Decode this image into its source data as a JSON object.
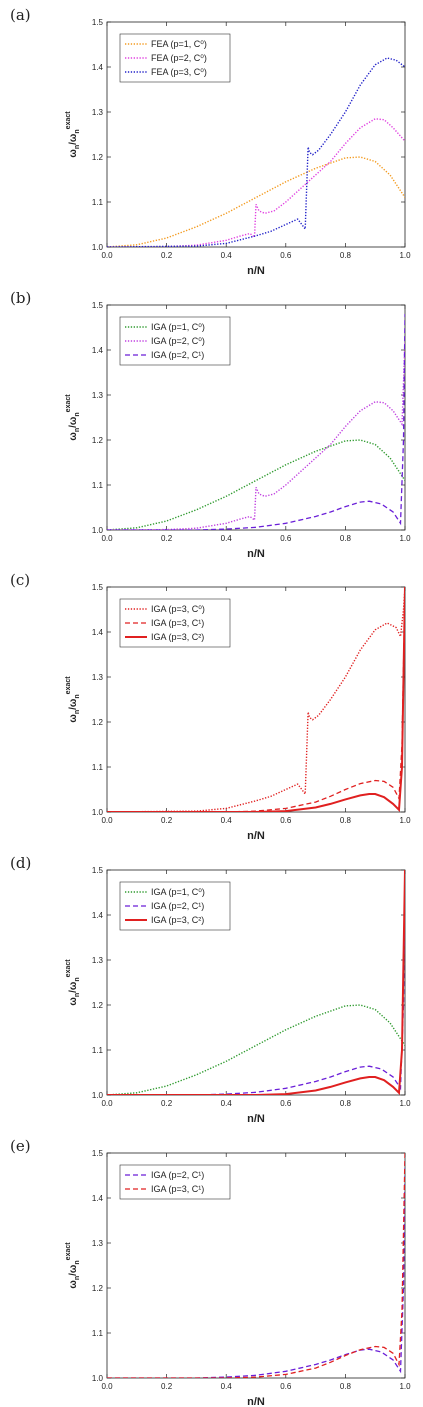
{
  "chart_data": [
    {
      "panel": "(a)",
      "type": "line",
      "xlabel": "n/N",
      "ylabel": {
        "base": "ω",
        "sub": "n",
        "sup": "exact"
      },
      "xlim": [
        0.0,
        1.0
      ],
      "ylim": [
        1.0,
        1.5
      ],
      "xticks": [
        "0.0",
        "0.2",
        "0.4",
        "0.6",
        "0.8",
        "1.0"
      ],
      "yticks": [
        "1.0",
        "1.1",
        "1.2",
        "1.3",
        "1.4",
        "1.5"
      ],
      "legend_position": "top-left",
      "series": [
        {
          "name": "FEA (p=1, C⁰)",
          "color": "#F39A1E",
          "dash": "dotted",
          "x": [
            0,
            0.1,
            0.2,
            0.3,
            0.4,
            0.5,
            0.6,
            0.7,
            0.8,
            0.85,
            0.9,
            0.95,
            1.0
          ],
          "y": [
            1.0,
            1.005,
            1.02,
            1.045,
            1.075,
            1.11,
            1.145,
            1.175,
            1.198,
            1.2,
            1.19,
            1.16,
            1.11
          ]
        },
        {
          "name": "FEA (p=2, C⁰)",
          "color": "#E040E0",
          "dash": "dotted",
          "x": [
            0,
            0.2,
            0.3,
            0.4,
            0.45,
            0.48,
            0.495,
            0.5,
            0.51,
            0.53,
            0.56,
            0.6,
            0.65,
            0.7,
            0.75,
            0.8,
            0.85,
            0.9,
            0.93,
            0.96,
            1.0
          ],
          "y": [
            1.0,
            1.001,
            1.004,
            1.015,
            1.025,
            1.03,
            1.022,
            1.095,
            1.08,
            1.075,
            1.08,
            1.1,
            1.13,
            1.16,
            1.19,
            1.23,
            1.265,
            1.285,
            1.283,
            1.265,
            1.235
          ]
        },
        {
          "name": "FEA (p=3, C⁰)",
          "color": "#2020C8",
          "dash": "dotted",
          "x": [
            0,
            0.3,
            0.4,
            0.5,
            0.55,
            0.6,
            0.64,
            0.665,
            0.675,
            0.68,
            0.69,
            0.71,
            0.75,
            0.8,
            0.85,
            0.9,
            0.94,
            0.97,
            1.0
          ],
          "y": [
            1.0,
            1.002,
            1.008,
            1.025,
            1.035,
            1.05,
            1.062,
            1.04,
            1.222,
            1.21,
            1.205,
            1.215,
            1.25,
            1.3,
            1.36,
            1.405,
            1.42,
            1.415,
            1.4
          ]
        }
      ]
    },
    {
      "panel": "(b)",
      "type": "line",
      "xlabel": "n/N",
      "ylabel": {
        "base": "ω",
        "sub": "n",
        "sup": "exact"
      },
      "xlim": [
        0.0,
        1.0
      ],
      "ylim": [
        1.0,
        1.5
      ],
      "xticks": [
        "0.0",
        "0.2",
        "0.4",
        "0.6",
        "0.8",
        "1.0"
      ],
      "yticks": [
        "1.0",
        "1.1",
        "1.2",
        "1.3",
        "1.4",
        "1.5"
      ],
      "legend_position": "top-left",
      "series": [
        {
          "name": "IGA (p=1, C⁰)",
          "color": "#2E9A2E",
          "dash": "dotted",
          "x": [
            0,
            0.1,
            0.2,
            0.3,
            0.4,
            0.5,
            0.6,
            0.7,
            0.8,
            0.85,
            0.9,
            0.95,
            1.0
          ],
          "y": [
            1.0,
            1.005,
            1.02,
            1.045,
            1.075,
            1.11,
            1.145,
            1.175,
            1.198,
            1.2,
            1.19,
            1.16,
            1.11
          ]
        },
        {
          "name": "IGA (p=2, C⁰)",
          "color": "#C040E0",
          "dash": "dotted",
          "x": [
            0,
            0.2,
            0.3,
            0.4,
            0.45,
            0.48,
            0.495,
            0.5,
            0.51,
            0.53,
            0.56,
            0.6,
            0.65,
            0.7,
            0.75,
            0.8,
            0.85,
            0.9,
            0.93,
            0.96,
            0.99,
            1.0
          ],
          "y": [
            1.0,
            1.001,
            1.004,
            1.015,
            1.025,
            1.03,
            1.022,
            1.095,
            1.08,
            1.075,
            1.08,
            1.1,
            1.13,
            1.16,
            1.19,
            1.23,
            1.265,
            1.285,
            1.283,
            1.265,
            1.235,
            1.42
          ]
        },
        {
          "name": "IGA (p=2, C¹)",
          "color": "#6A1FD8",
          "dash": "dashed",
          "x": [
            0,
            0.3,
            0.4,
            0.5,
            0.6,
            0.7,
            0.75,
            0.8,
            0.85,
            0.88,
            0.92,
            0.96,
            0.985,
            0.995,
            1.0
          ],
          "y": [
            1.0,
            1.0,
            1.002,
            1.006,
            1.015,
            1.03,
            1.04,
            1.052,
            1.062,
            1.064,
            1.058,
            1.04,
            1.015,
            1.2,
            1.48
          ]
        }
      ]
    },
    {
      "panel": "(c)",
      "type": "line",
      "xlabel": "n/N",
      "ylabel": {
        "base": "ω",
        "sub": "n",
        "sup": "exact"
      },
      "xlim": [
        0.0,
        1.0
      ],
      "ylim": [
        1.0,
        1.5
      ],
      "xticks": [
        "0.0",
        "0.2",
        "0.4",
        "0.6",
        "0.8",
        "1.0"
      ],
      "yticks": [
        "1.0",
        "1.1",
        "1.2",
        "1.3",
        "1.4",
        "1.5"
      ],
      "legend_position": "top-left",
      "series": [
        {
          "name": "IGA (p=3, C⁰)",
          "color": "#E02020",
          "dash": "dotted",
          "x": [
            0,
            0.3,
            0.4,
            0.5,
            0.55,
            0.6,
            0.64,
            0.665,
            0.675,
            0.68,
            0.69,
            0.71,
            0.75,
            0.8,
            0.85,
            0.9,
            0.94,
            0.97,
            0.985,
            0.995,
            1.0
          ],
          "y": [
            1.0,
            1.002,
            1.008,
            1.025,
            1.035,
            1.05,
            1.062,
            1.04,
            1.222,
            1.21,
            1.205,
            1.215,
            1.25,
            1.3,
            1.36,
            1.405,
            1.42,
            1.41,
            1.39,
            1.45,
            1.5
          ]
        },
        {
          "name": "IGA (p=3, C¹)",
          "color": "#E02020",
          "dash": "dashed",
          "x": [
            0,
            0.4,
            0.5,
            0.6,
            0.7,
            0.75,
            0.8,
            0.85,
            0.9,
            0.93,
            0.96,
            0.98,
            0.99,
            1.0
          ],
          "y": [
            1.0,
            1.0,
            1.002,
            1.008,
            1.022,
            1.035,
            1.05,
            1.063,
            1.07,
            1.068,
            1.055,
            1.03,
            1.15,
            1.5
          ]
        },
        {
          "name": "IGA (p=3, C²)",
          "color": "#E02020",
          "dash": "solid",
          "x": [
            0,
            0.5,
            0.6,
            0.7,
            0.75,
            0.8,
            0.85,
            0.88,
            0.9,
            0.93,
            0.96,
            0.98,
            0.99,
            0.995,
            1.0
          ],
          "y": [
            1.0,
            1.0,
            1.002,
            1.01,
            1.018,
            1.028,
            1.037,
            1.04,
            1.04,
            1.033,
            1.018,
            1.005,
            1.1,
            1.3,
            1.5
          ]
        }
      ]
    },
    {
      "panel": "(d)",
      "type": "line",
      "xlabel": "n/N",
      "ylabel": {
        "base": "ω",
        "sub": "n",
        "sup": "exact"
      },
      "xlim": [
        0.0,
        1.0
      ],
      "ylim": [
        1.0,
        1.5
      ],
      "xticks": [
        "0.0",
        "0.2",
        "0.4",
        "0.6",
        "0.8",
        "1.0"
      ],
      "yticks": [
        "1.0",
        "1.1",
        "1.2",
        "1.3",
        "1.4",
        "1.5"
      ],
      "legend_position": "top-left",
      "series": [
        {
          "name": "IGA (p=1, C⁰)",
          "color": "#2E9A2E",
          "dash": "dotted",
          "x": [
            0,
            0.1,
            0.2,
            0.3,
            0.4,
            0.5,
            0.6,
            0.7,
            0.8,
            0.85,
            0.9,
            0.95,
            1.0
          ],
          "y": [
            1.0,
            1.005,
            1.02,
            1.045,
            1.075,
            1.11,
            1.145,
            1.175,
            1.198,
            1.2,
            1.19,
            1.16,
            1.11
          ]
        },
        {
          "name": "IGA (p=2, C¹)",
          "color": "#6A1FD8",
          "dash": "dashed",
          "x": [
            0,
            0.3,
            0.4,
            0.5,
            0.6,
            0.7,
            0.75,
            0.8,
            0.85,
            0.88,
            0.92,
            0.96,
            0.985,
            0.995,
            1.0
          ],
          "y": [
            1.0,
            1.0,
            1.002,
            1.006,
            1.015,
            1.03,
            1.04,
            1.052,
            1.062,
            1.064,
            1.058,
            1.04,
            1.015,
            1.2,
            1.48
          ]
        },
        {
          "name": "IGA (p=3, C²)",
          "color": "#E02020",
          "dash": "solid",
          "x": [
            0,
            0.5,
            0.6,
            0.7,
            0.75,
            0.8,
            0.85,
            0.88,
            0.9,
            0.93,
            0.96,
            0.98,
            0.99,
            0.995,
            1.0
          ],
          "y": [
            1.0,
            1.0,
            1.002,
            1.01,
            1.018,
            1.028,
            1.037,
            1.04,
            1.04,
            1.033,
            1.018,
            1.005,
            1.1,
            1.3,
            1.5
          ]
        }
      ]
    },
    {
      "panel": "(e)",
      "type": "line",
      "xlabel": "n/N",
      "ylabel": {
        "base": "ω",
        "sub": "n",
        "sup": "exact"
      },
      "xlim": [
        0.0,
        1.0
      ],
      "ylim": [
        1.0,
        1.5
      ],
      "xticks": [
        "0.0",
        "0.2",
        "0.4",
        "0.6",
        "0.8",
        "1.0"
      ],
      "yticks": [
        "1.0",
        "1.1",
        "1.2",
        "1.3",
        "1.4",
        "1.5"
      ],
      "legend_position": "top-left",
      "series": [
        {
          "name": "IGA (p=2, C¹)",
          "color": "#6A1FD8",
          "dash": "dashed",
          "x": [
            0,
            0.3,
            0.4,
            0.5,
            0.6,
            0.7,
            0.75,
            0.8,
            0.85,
            0.88,
            0.92,
            0.96,
            0.985,
            0.995,
            1.0
          ],
          "y": [
            1.0,
            1.0,
            1.002,
            1.006,
            1.015,
            1.03,
            1.04,
            1.052,
            1.062,
            1.064,
            1.058,
            1.04,
            1.015,
            1.2,
            1.48
          ]
        },
        {
          "name": "IGA (p=3, C¹)",
          "color": "#E02020",
          "dash": "dashed",
          "x": [
            0,
            0.4,
            0.5,
            0.6,
            0.7,
            0.75,
            0.8,
            0.85,
            0.9,
            0.93,
            0.96,
            0.98,
            0.99,
            1.0
          ],
          "y": [
            1.0,
            1.0,
            1.002,
            1.008,
            1.022,
            1.035,
            1.05,
            1.063,
            1.07,
            1.068,
            1.055,
            1.03,
            1.15,
            1.5
          ]
        }
      ]
    }
  ]
}
